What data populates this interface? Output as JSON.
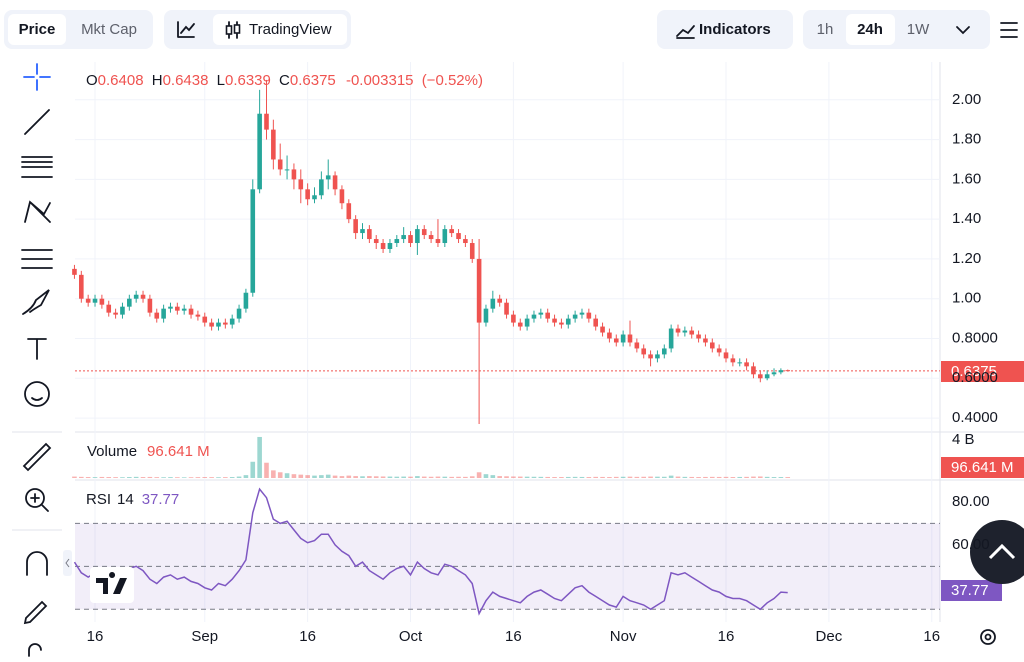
{
  "toolbar": {
    "tabs": [
      "Price",
      "Mkt Cap"
    ],
    "chart_style": "TradingView",
    "indicators": "Indicators",
    "intervals": [
      "1h",
      "24h",
      "1W"
    ]
  },
  "chart_data": {
    "type": "candlestick",
    "up_color": "#26a69a",
    "down_color": "#ef5350",
    "legend": {
      "open": {
        "key": "O",
        "value": 0.6408
      },
      "high": {
        "key": "H",
        "value": 0.6438
      },
      "low": {
        "key": "L",
        "value": 0.6339
      },
      "close": {
        "key": "C",
        "value": 0.6375
      },
      "change": -0.003315,
      "change_label": "(−0.52%)"
    },
    "xlim": [
      0.08,
      126.2
    ],
    "xticks": [
      {
        "value": 3,
        "label": "16"
      },
      {
        "value": 19,
        "label": "Sep"
      },
      {
        "value": 34,
        "label": "16"
      },
      {
        "value": 49,
        "label": "Oct"
      },
      {
        "value": 64,
        "label": "16"
      },
      {
        "value": 80,
        "label": "Nov"
      },
      {
        "value": 95,
        "label": "16"
      },
      {
        "value": 110,
        "label": "Dec"
      },
      {
        "value": 125,
        "label": "16"
      }
    ],
    "ylim": [
      0.34,
      2.19
    ],
    "yticks": [
      {
        "value": 0.4,
        "label": "0.4000"
      },
      {
        "value": 0.6,
        "label": "0.6000"
      },
      {
        "value": 0.8,
        "label": "0.8000"
      },
      {
        "value": 1.0,
        "label": "1.00"
      },
      {
        "value": 1.2,
        "label": "1.20"
      },
      {
        "value": 1.4,
        "label": "1.40"
      },
      {
        "value": 1.6,
        "label": "1.60"
      },
      {
        "value": 1.8,
        "label": "1.80"
      },
      {
        "value": 2.0,
        "label": "2.00"
      }
    ],
    "grid": true,
    "open": [
      1.15,
      1.12,
      1.0,
      0.98,
      1.0,
      0.97,
      0.93,
      0.92,
      0.96,
      1.0,
      1.02,
      1.0,
      0.93,
      0.9,
      0.95,
      0.96,
      0.94,
      0.95,
      0.92,
      0.91,
      0.88,
      0.86,
      0.88,
      0.87,
      0.9,
      0.95,
      1.03,
      1.55,
      1.93,
      1.85,
      1.7,
      1.65,
      1.65,
      1.6,
      1.55,
      1.5,
      1.52,
      1.6,
      1.62,
      1.55,
      1.48,
      1.4,
      1.33,
      1.35,
      1.3,
      1.28,
      1.25,
      1.28,
      1.3,
      1.32,
      1.28,
      1.35,
      1.32,
      1.3,
      1.28,
      1.35,
      1.33,
      1.3,
      1.28,
      1.2,
      0.88,
      0.95,
      1.0,
      0.98,
      0.92,
      0.88,
      0.86,
      0.9,
      0.92,
      0.93,
      0.9,
      0.88,
      0.87,
      0.9,
      0.92,
      0.93,
      0.9,
      0.86,
      0.83,
      0.8,
      0.78,
      0.82,
      0.78,
      0.75,
      0.72,
      0.7,
      0.72,
      0.75,
      0.85,
      0.83,
      0.84,
      0.82,
      0.8,
      0.78,
      0.75,
      0.73,
      0.7,
      0.68,
      0.68,
      0.66,
      0.62,
      0.6,
      0.62,
      0.63,
      0.6408
    ],
    "high": [
      1.17,
      1.14,
      1.02,
      1.02,
      1.02,
      0.99,
      0.95,
      0.98,
      1.02,
      1.04,
      1.04,
      1.02,
      0.95,
      0.97,
      0.98,
      0.98,
      0.97,
      0.97,
      0.94,
      0.93,
      0.9,
      0.9,
      0.9,
      0.92,
      0.97,
      1.05,
      1.6,
      2.05,
      2.1,
      1.9,
      1.78,
      1.72,
      1.68,
      1.65,
      1.58,
      1.56,
      1.64,
      1.7,
      1.64,
      1.57,
      1.5,
      1.42,
      1.38,
      1.37,
      1.32,
      1.3,
      1.3,
      1.32,
      1.36,
      1.34,
      1.37,
      1.37,
      1.34,
      1.4,
      1.37,
      1.37,
      1.35,
      1.32,
      1.3,
      1.3,
      0.97,
      1.04,
      1.02,
      1.0,
      0.94,
      0.9,
      0.92,
      0.94,
      0.95,
      0.95,
      0.92,
      0.9,
      0.92,
      0.94,
      0.95,
      0.95,
      0.92,
      0.88,
      0.85,
      0.82,
      0.84,
      0.89,
      0.8,
      0.77,
      0.74,
      0.74,
      0.77,
      0.87,
      0.87,
      0.86,
      0.86,
      0.84,
      0.82,
      0.8,
      0.77,
      0.75,
      0.72,
      0.7,
      0.7,
      0.68,
      0.64,
      0.64,
      0.65,
      0.65,
      0.6438
    ],
    "low": [
      1.1,
      0.98,
      0.96,
      0.96,
      0.95,
      0.91,
      0.9,
      0.9,
      0.94,
      0.98,
      0.98,
      0.91,
      0.88,
      0.88,
      0.93,
      0.92,
      0.92,
      0.9,
      0.89,
      0.86,
      0.84,
      0.84,
      0.85,
      0.85,
      0.88,
      0.93,
      1.01,
      1.53,
      1.8,
      1.65,
      1.62,
      1.6,
      1.55,
      1.48,
      1.47,
      1.48,
      1.5,
      1.55,
      1.52,
      1.45,
      1.38,
      1.3,
      1.3,
      1.28,
      1.25,
      1.23,
      1.23,
      1.26,
      1.28,
      1.26,
      1.22,
      1.3,
      1.28,
      1.26,
      1.26,
      1.31,
      1.28,
      1.26,
      1.18,
      0.37,
      0.86,
      0.93,
      0.96,
      0.9,
      0.86,
      0.84,
      0.84,
      0.88,
      0.9,
      0.88,
      0.86,
      0.85,
      0.85,
      0.88,
      0.9,
      0.88,
      0.84,
      0.81,
      0.78,
      0.76,
      0.76,
      0.76,
      0.73,
      0.7,
      0.66,
      0.68,
      0.7,
      0.73,
      0.81,
      0.81,
      0.8,
      0.78,
      0.76,
      0.73,
      0.71,
      0.68,
      0.66,
      0.66,
      0.64,
      0.6,
      0.58,
      0.59,
      0.61,
      0.62,
      0.6339
    ],
    "close": [
      1.12,
      1.0,
      0.98,
      1.0,
      0.97,
      0.93,
      0.92,
      0.96,
      1.0,
      1.02,
      1.0,
      0.93,
      0.9,
      0.95,
      0.96,
      0.94,
      0.95,
      0.92,
      0.91,
      0.88,
      0.86,
      0.88,
      0.87,
      0.9,
      0.95,
      1.03,
      1.55,
      1.93,
      1.85,
      1.7,
      1.65,
      1.65,
      1.6,
      1.55,
      1.5,
      1.52,
      1.6,
      1.62,
      1.55,
      1.48,
      1.4,
      1.33,
      1.35,
      1.3,
      1.28,
      1.25,
      1.28,
      1.3,
      1.32,
      1.28,
      1.35,
      1.32,
      1.3,
      1.28,
      1.35,
      1.33,
      1.3,
      1.28,
      1.2,
      0.88,
      0.95,
      1.0,
      0.98,
      0.92,
      0.88,
      0.86,
      0.9,
      0.92,
      0.93,
      0.9,
      0.88,
      0.87,
      0.9,
      0.92,
      0.93,
      0.9,
      0.86,
      0.83,
      0.8,
      0.78,
      0.82,
      0.78,
      0.75,
      0.72,
      0.7,
      0.72,
      0.75,
      0.85,
      0.83,
      0.84,
      0.82,
      0.8,
      0.78,
      0.75,
      0.73,
      0.7,
      0.68,
      0.68,
      0.66,
      0.62,
      0.6,
      0.62,
      0.63,
      0.6408,
      0.6375
    ],
    "volume": {
      "label": "Volume",
      "current": 96.641,
      "current_label": "96.641 M",
      "ylim": [
        0,
        4400
      ],
      "yticks": [
        {
          "value": 4000,
          "label": "4 B"
        }
      ],
      "values": [
        150,
        120,
        100,
        90,
        110,
        100,
        90,
        80,
        100,
        120,
        100,
        110,
        90,
        80,
        90,
        80,
        70,
        80,
        90,
        100,
        90,
        80,
        90,
        100,
        150,
        300,
        1700,
        4300,
        1600,
        800,
        600,
        500,
        400,
        350,
        300,
        250,
        300,
        350,
        250,
        200,
        250,
        200,
        180,
        200,
        180,
        160,
        150,
        140,
        150,
        140,
        200,
        150,
        130,
        150,
        140,
        120,
        130,
        120,
        180,
        600,
        400,
        300,
        200,
        180,
        160,
        150,
        140,
        130,
        120,
        110,
        100,
        100,
        110,
        120,
        110,
        100,
        120,
        110,
        100,
        120,
        130,
        140,
        120,
        130,
        150,
        140,
        130,
        250,
        150,
        120,
        110,
        100,
        110,
        120,
        110,
        120,
        100,
        110,
        120,
        150,
        160,
        120,
        100,
        100,
        96.641
      ]
    },
    "rsi": {
      "label": "RSI",
      "period": 14,
      "current": 37.77,
      "color": "#7e57c2",
      "ylim": [
        25,
        89.3
      ],
      "yticks": [
        {
          "value": 80,
          "label": "80.00"
        },
        {
          "value": 60,
          "label": "60.00"
        }
      ],
      "bands": [
        70,
        50,
        30
      ],
      "values": [
        52,
        47,
        45,
        47,
        46,
        44,
        43,
        46,
        49,
        50,
        48,
        44,
        42,
        45,
        46,
        44,
        45,
        43,
        42,
        40,
        39,
        42,
        41,
        44,
        48,
        53,
        75,
        86,
        82,
        72,
        70,
        71,
        67,
        63,
        61,
        62,
        65,
        65,
        60,
        57,
        55,
        50,
        52,
        48,
        46,
        44,
        47,
        49,
        50,
        46,
        52,
        49,
        47,
        46,
        51,
        50,
        48,
        46,
        42,
        28,
        34,
        38,
        36,
        35,
        34,
        33,
        36,
        38,
        39,
        37,
        35,
        34,
        37,
        40,
        41,
        38,
        36,
        34,
        32,
        31,
        36,
        34,
        33,
        32,
        30,
        32,
        34,
        47,
        46,
        47,
        45,
        43,
        41,
        39,
        38,
        36,
        35,
        35,
        34,
        32,
        30,
        33,
        35,
        38,
        37.77
      ]
    }
  }
}
